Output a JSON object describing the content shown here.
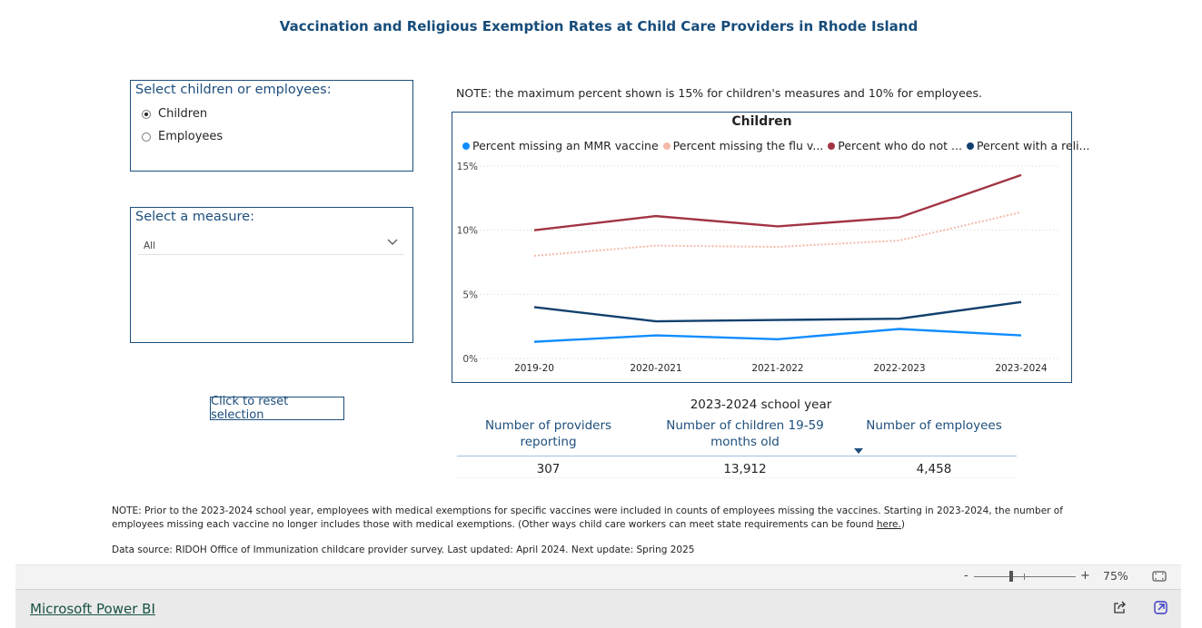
{
  "report": {
    "title": "Vaccination and Religious Exemption Rates at Child Care Providers in Rhode Island"
  },
  "slicer_group": {
    "header": "Select children or employees:",
    "options": [
      "Children",
      "Employees"
    ],
    "selected": "Children"
  },
  "slicer_measure": {
    "header": "Select a measure:",
    "value": "All"
  },
  "reset_button": {
    "label": "Click to reset selection"
  },
  "chart_note": "NOTE: the maximum percent shown is 15% for children's measures and 10% for employees.",
  "chart_data": {
    "type": "line",
    "title": "Children",
    "categories": [
      "2019-20",
      "2020-2021",
      "2021-2022",
      "2022-2023",
      "2023-2024"
    ],
    "series": [
      {
        "name": "Percent missing an MMR vaccine",
        "legend_label": "Percent missing an MMR vaccine",
        "color": "#118dff",
        "style": "solid",
        "values": [
          1.3,
          1.8,
          1.5,
          2.3,
          1.8
        ]
      },
      {
        "name": "Percent missing the flu vaccine",
        "legend_label": "Percent missing the flu v...",
        "color": "#f4b9a9",
        "style": "dotted",
        "values": [
          8.0,
          8.8,
          8.7,
          9.2,
          11.4
        ]
      },
      {
        "name": "Percent who do not ...",
        "legend_label": "Percent who do not ...",
        "color": "#a23443",
        "style": "solid",
        "values": [
          10.0,
          11.1,
          10.3,
          11.0,
          14.3
        ]
      },
      {
        "name": "Percent with a religious exemption",
        "legend_label": "Percent with a reli...",
        "color": "#12406e",
        "style": "solid",
        "values": [
          4.0,
          2.9,
          3.0,
          3.1,
          4.4
        ]
      }
    ],
    "y_ticks": [
      "15%",
      "10%",
      "5%",
      "0%"
    ],
    "y_tick_values": [
      15,
      10,
      5,
      0
    ],
    "ylim": [
      0,
      15
    ],
    "xlabel": "",
    "ylabel": "",
    "grid": true,
    "legend_position": "top-left"
  },
  "summary_table": {
    "title": "2023-2024 school year",
    "headers": [
      "Number of providers reporting",
      "Number of children 19-59 months old",
      "Number of employees"
    ],
    "values": [
      "307",
      "13,912",
      "4,458"
    ]
  },
  "footnote": {
    "text": "NOTE: Prior to the 2023-2024 school year, employees with medical exemptions for specific vaccines were included in counts of employees missing the vaccines. Starting in 2023-2024, the number of employees missing each vaccine no longer includes those with medical exemptions. (Other ways child care workers can meet state requirements can be found ",
    "link_text": "here.",
    "closing": ")"
  },
  "data_source": "Data source: RIDOH Office of Immunization childcare provider survey. Last updated: April 2024. Next update: Spring 2025",
  "viewer": {
    "zoom_minus": "-",
    "zoom_plus": "+",
    "zoom_level": "75%",
    "zoom_fraction": 0.5,
    "brand_link": "Microsoft Power BI"
  }
}
